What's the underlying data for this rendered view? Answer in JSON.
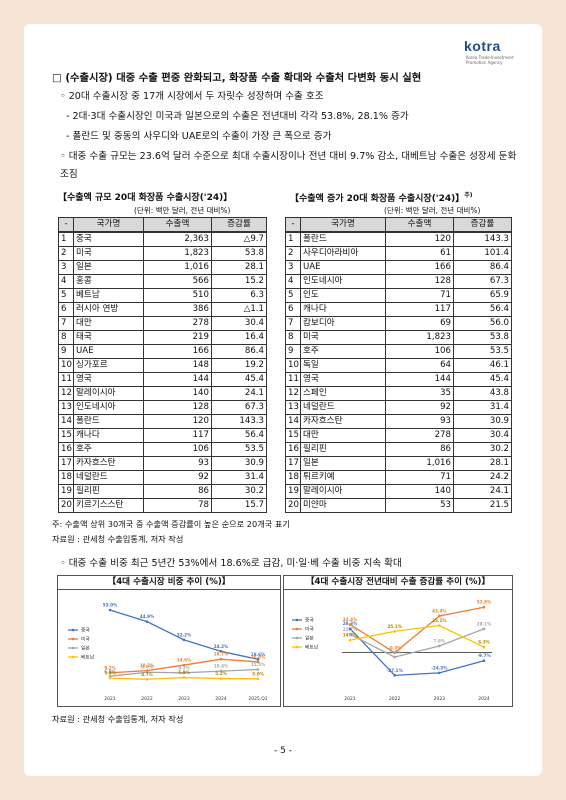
{
  "header": {
    "logo": "kotra",
    "logo_sub": "Korea Trade-Investment Promotion Agency"
  },
  "heading": "□ (수출시장) 대중 수출 편중 완화되고, 화장품 수출 확대와 수출처 다변화 동시 실현",
  "bullets": [
    "◦ 20대 수출시장 중 17개 시장에서 두 자릿수 성장하며 수출 호조",
    "- 2대·3대 수출시장인 미국과 일본으로의 수출은 전년대비 각각 53.8%, 28.1% 증가",
    "- 폴란드 및 중동의 사우디와 UAE로의 수출이 가장 큰 폭으로 증가",
    "◦ 대중 수출 규모는 23.6억 달러 수준으로 최대 수출시장이나 전년 대비 9.7% 감소, 대베트남 수출은 성장세 둔화 조짐"
  ],
  "table1": {
    "title": "【수출액 규모 20대 화장품 수출시장('24)】",
    "unit": "(단위: 백만 달러, 전년 대비%)",
    "columns": [
      "-",
      "국가명",
      "수출액",
      "증감률"
    ],
    "rows": [
      [
        "1",
        "중국",
        "2,363",
        "△9.7"
      ],
      [
        "2",
        "미국",
        "1,823",
        "53.8"
      ],
      [
        "3",
        "일본",
        "1,016",
        "28.1"
      ],
      [
        "4",
        "홍콩",
        "566",
        "15.2"
      ],
      [
        "5",
        "베트남",
        "510",
        "6.3"
      ],
      [
        "6",
        "러시아 연방",
        "386",
        "△1.1"
      ],
      [
        "7",
        "대만",
        "278",
        "30.4"
      ],
      [
        "8",
        "태국",
        "219",
        "16.4"
      ],
      [
        "9",
        "UAE",
        "166",
        "86.4"
      ],
      [
        "10",
        "싱가포르",
        "148",
        "19.2"
      ],
      [
        "11",
        "영국",
        "144",
        "45.4"
      ],
      [
        "12",
        "말레이시아",
        "140",
        "24.1"
      ],
      [
        "13",
        "인도네시아",
        "128",
        "67.3"
      ],
      [
        "14",
        "폴란드",
        "120",
        "143.3"
      ],
      [
        "15",
        "캐나다",
        "117",
        "56.4"
      ],
      [
        "16",
        "호주",
        "106",
        "53.5"
      ],
      [
        "17",
        "카자흐스탄",
        "93",
        "30.9"
      ],
      [
        "18",
        "네덜란드",
        "92",
        "31.4"
      ],
      [
        "19",
        "필리핀",
        "86",
        "30.2"
      ],
      [
        "20",
        "키르기스스탄",
        "78",
        "15.7"
      ]
    ]
  },
  "table2": {
    "title": "【수출액 증가 20대 화장품 수출시장('24)】",
    "title_note": "주)",
    "unit": "(단위: 백만 달러, 전년 대비%)",
    "columns": [
      "-",
      "국가명",
      "수출액",
      "증감률"
    ],
    "rows": [
      [
        "1",
        "폴란드",
        "120",
        "143.3"
      ],
      [
        "2",
        "사우디아라비아",
        "61",
        "101.4"
      ],
      [
        "3",
        "UAE",
        "166",
        "86.4"
      ],
      [
        "4",
        "인도네시아",
        "128",
        "67.3"
      ],
      [
        "5",
        "인도",
        "71",
        "65.9"
      ],
      [
        "6",
        "캐나다",
        "117",
        "56.4"
      ],
      [
        "7",
        "캄보디아",
        "69",
        "56.0"
      ],
      [
        "8",
        "미국",
        "1,823",
        "53.8"
      ],
      [
        "9",
        "호주",
        "106",
        "53.5"
      ],
      [
        "10",
        "독일",
        "64",
        "46.1"
      ],
      [
        "11",
        "영국",
        "144",
        "45.4"
      ],
      [
        "12",
        "스페인",
        "35",
        "43.8"
      ],
      [
        "13",
        "네덜란드",
        "92",
        "31.4"
      ],
      [
        "14",
        "카자흐스탄",
        "93",
        "30.9"
      ],
      [
        "15",
        "대만",
        "278",
        "30.4"
      ],
      [
        "16",
        "필리핀",
        "86",
        "30.2"
      ],
      [
        "17",
        "일본",
        "1,016",
        "28.1"
      ],
      [
        "18",
        "튀르키예",
        "71",
        "24.2"
      ],
      [
        "19",
        "말레이시아",
        "140",
        "24.1"
      ],
      [
        "20",
        "미얀마",
        "53",
        "21.5"
      ]
    ]
  },
  "note": "주: 수출액 상위 30개국 중 수출액 증감률이 높은 순으로 20개국 표기",
  "source1": "자료원 : 관세청 수출입통계, 저자 작성",
  "bullet2": "◦ 대중 수출 비중 최근 5년간 53%에서 18.6%로 급감, 미·일·베 수출 비중 지속 확대",
  "charts": [
    {
      "type": "line",
      "title": "【4대 수출시장 비중 추이 (%)】",
      "x": [
        "2021",
        "2022",
        "2023",
        "2024",
        "2025.Q1"
      ],
      "ylim": [
        0,
        60
      ],
      "series": [
        {
          "name": "중국",
          "color": "#4472c4",
          "values": [
            53.0,
            44.9,
            32.2,
            24.2,
            18.6
          ],
          "value_labels": [
            "53.0%",
            "44.9%",
            "32.2%",
            "24.2%",
            "18.6%"
          ]
        },
        {
          "name": "미국",
          "color": "#ed7d31",
          "values": [
            9.2,
            10.7,
            14.6,
            18.7,
            16.8
          ],
          "value_labels": [
            "9.2%",
            "10.7%",
            "14.6%",
            "18.7%",
            "16.8%"
          ]
        },
        {
          "name": "일본",
          "color": "#a5a5a5",
          "values": [
            6.8,
            9.6,
            9.2,
            10.4,
            11.5
          ],
          "value_labels": [
            "6.8%",
            "9.6%",
            "9.2%",
            "10.4%",
            "11.5%"
          ]
        },
        {
          "name": "베트남",
          "color": "#ffc000",
          "values": [
            5.5,
            4.7,
            5.9,
            5.2,
            5.0
          ],
          "value_labels": [
            "5.5%",
            "4.7%",
            "5.9%",
            "5.2%",
            "5.0%"
          ]
        }
      ]
    },
    {
      "type": "line",
      "title": "【4대 수출시장 전년대비 수출 증감률 추이 (%)】",
      "x": [
        "2021",
        "2022",
        "2023",
        "2024"
      ],
      "ylim": [
        -35,
        60
      ],
      "zero_line": true,
      "series": [
        {
          "name": "중국",
          "color": "#4472c4",
          "values": [
            28.3,
            -27.1,
            -24.2,
            -9.7
          ],
          "value_labels": [
            "28.3%",
            "-27.1%",
            "-24.2%",
            "-9.7%"
          ]
        },
        {
          "name": "미국",
          "color": "#ed7d31",
          "values": [
            33.4,
            -0.3,
            43.4,
            53.8
          ],
          "value_labels": [
            "33.4%",
            "-0.3%",
            "43.4%",
            "53.8%"
          ]
        },
        {
          "name": "일본",
          "color": "#a5a5a5",
          "values": [
            21.7,
            -5.4,
            7.8,
            28.1
          ],
          "value_labels": [
            "21.7%",
            "-5.4%",
            "7.8%",
            "28.1%"
          ]
        },
        {
          "name": "베트남",
          "color": "#ffc000",
          "values": [
            14.7,
            25.1,
            32.1,
            6.3
          ],
          "value_labels": [
            "14.7%",
            "25.1%",
            "32.1%",
            "6.3%"
          ]
        }
      ]
    }
  ],
  "source2": "자료원 : 관세청 수출입통계, 저자 작성",
  "page_number": "- 5 -"
}
